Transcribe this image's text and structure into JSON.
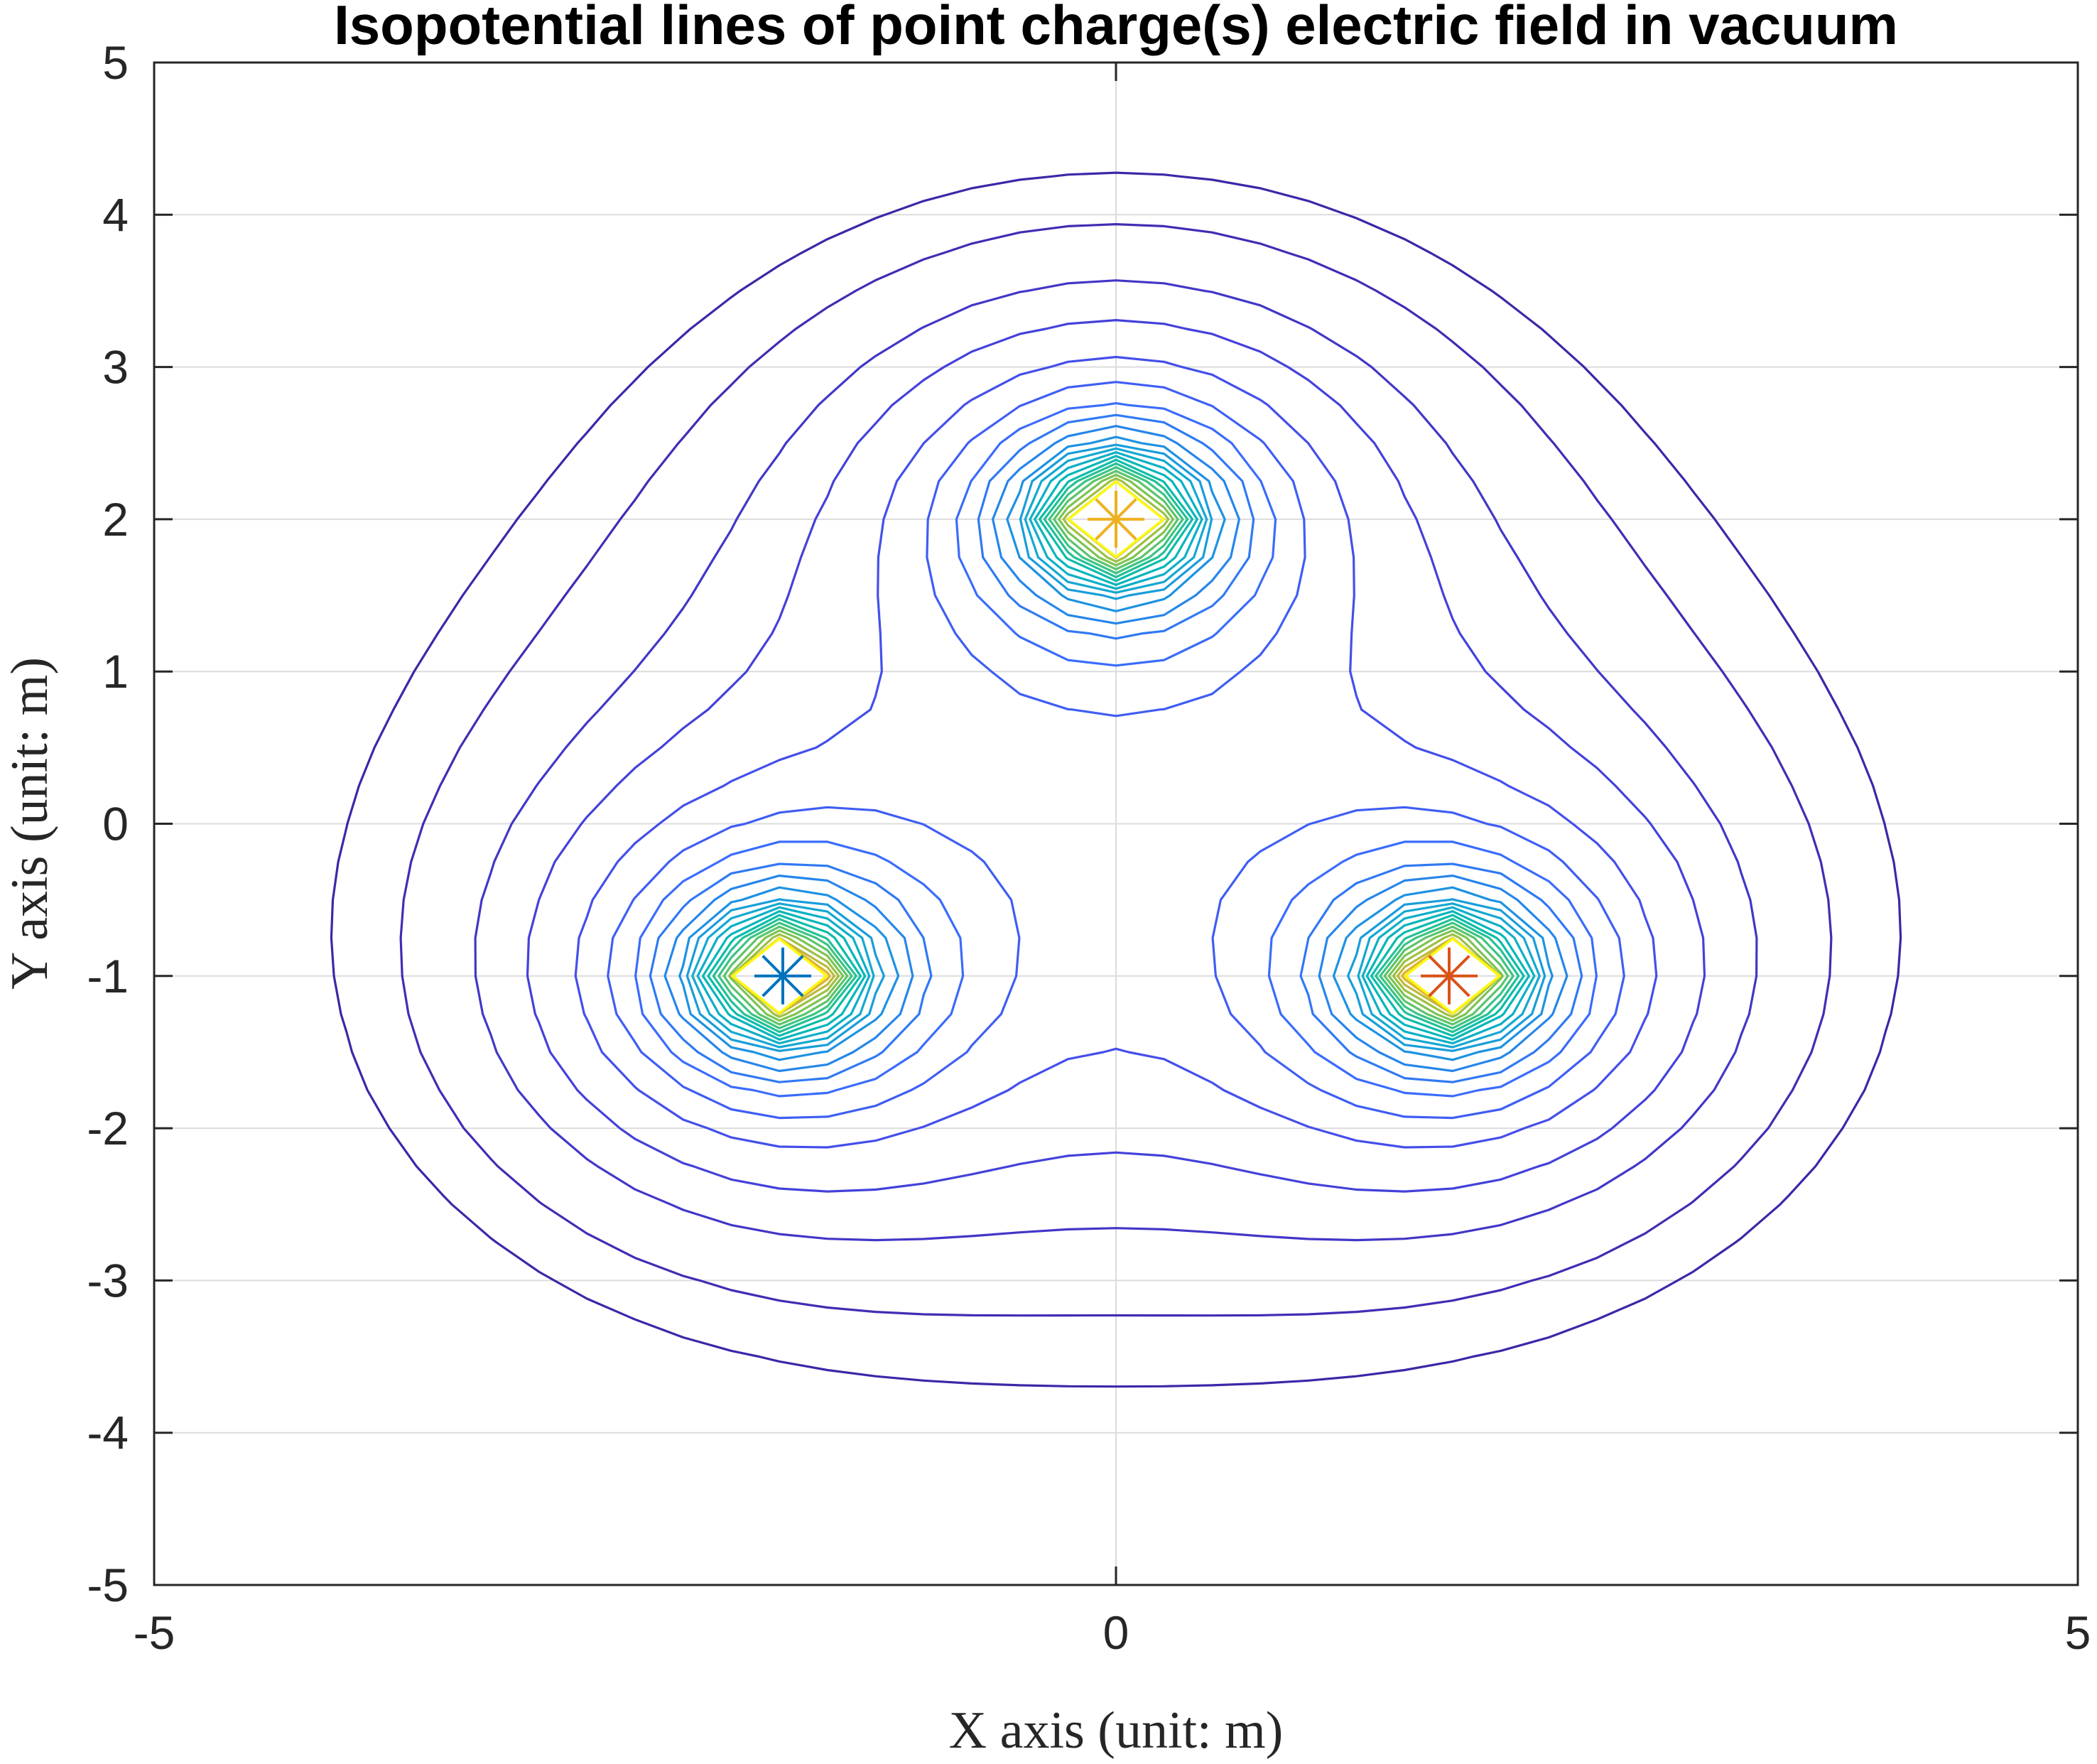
{
  "chart_data": {
    "type": "contour",
    "title": "Isopotential lines of point charge(s) electric field in vacuum",
    "xlabel": "X axis (unit: m)",
    "ylabel": "Y axis (unit: m)",
    "xlim": [
      -5,
      5
    ],
    "ylim": [
      -5,
      5
    ],
    "xticks": [
      -5,
      0,
      5
    ],
    "yticks": [
      -5,
      -4,
      -3,
      -2,
      -1,
      0,
      1,
      2,
      3,
      4,
      5
    ],
    "grid": true,
    "charges": [
      {
        "x": -1.732,
        "y": -1,
        "color": "#0072bd"
      },
      {
        "x": 0,
        "y": 2,
        "color": "#edb120"
      },
      {
        "x": 1.732,
        "y": -1,
        "color": "#d95319"
      }
    ],
    "contour_levels": [
      0.8,
      0.9,
      1.05,
      1.2,
      1.4,
      1.6,
      1.8,
      2.0,
      2.2,
      2.4,
      2.6,
      2.8,
      3.0,
      3.2,
      3.4,
      3.6,
      3.8,
      4.0,
      4.2,
      4.4,
      4.6,
      4.8,
      5.0,
      5.2,
      5.4,
      5.6,
      5.8
    ],
    "colormap": "parula"
  }
}
